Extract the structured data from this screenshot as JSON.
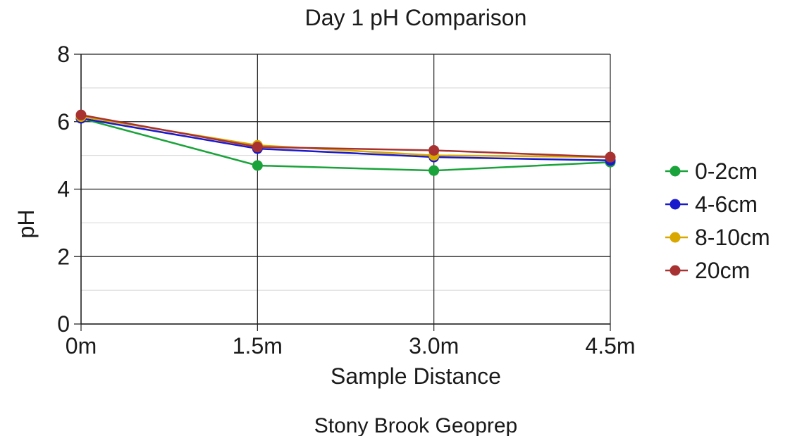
{
  "chart_data": {
    "type": "line",
    "title": "Day 1 pH Comparison",
    "xlabel": "Sample Distance",
    "ylabel": "pH",
    "caption": "Stony Brook Geoprep",
    "categories": [
      "0m",
      "1.5m",
      "3.0m",
      "4.5m"
    ],
    "ylim": [
      0,
      8
    ],
    "yticks": [
      0,
      2,
      4,
      6,
      8
    ],
    "grid": true,
    "legend_position": "right",
    "series": [
      {
        "name": "0-2cm",
        "color": "#1aa33a",
        "values": [
          6.1,
          4.7,
          4.55,
          4.8
        ]
      },
      {
        "name": "4-6cm",
        "color": "#1a1acc",
        "values": [
          6.1,
          5.2,
          4.95,
          4.85
        ]
      },
      {
        "name": "8-10cm",
        "color": "#d9a800",
        "values": [
          6.15,
          5.3,
          5.0,
          4.95
        ]
      },
      {
        "name": "20cm",
        "color": "#a83232",
        "values": [
          6.2,
          5.25,
          5.15,
          4.95
        ]
      }
    ]
  }
}
